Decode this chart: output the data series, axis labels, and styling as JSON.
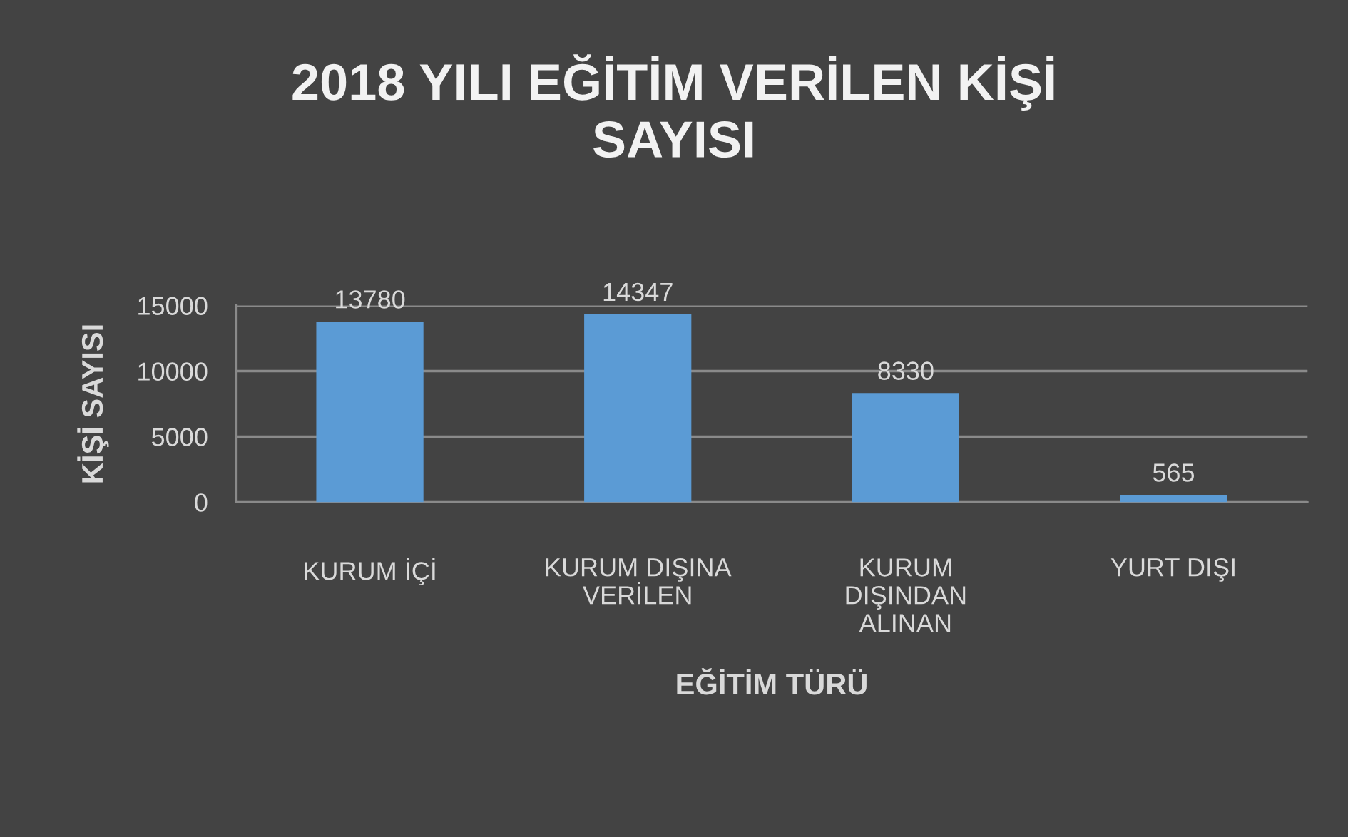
{
  "chart_data": {
    "type": "bar",
    "title": "2018 YILI EĞİTİM VERİLEN KİŞİ\nSAYISI",
    "xlabel": "EĞİTİM TÜRÜ",
    "ylabel": "KİŞİ SAYISI",
    "categories": [
      "KURUM İÇİ",
      "KURUM DIŞINA\nVERİLEN",
      "KURUM\nDIŞINDAN\nALINAN",
      "YURT DIŞI"
    ],
    "values": [
      13780,
      14347,
      8330,
      565
    ],
    "color": "#5b9bd5",
    "ylim": [
      0,
      15000
    ],
    "yticks": [
      0,
      5000,
      10000,
      15000
    ],
    "grid": "y",
    "data_labels": true
  }
}
